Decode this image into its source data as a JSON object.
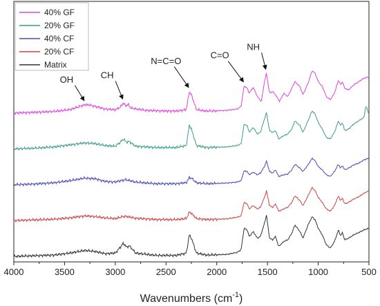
{
  "chart_data": {
    "type": "line",
    "xlabel_main": "Wavenumbers (cm",
    "xlabel_sup": "-1",
    "xlabel_close": ")",
    "xlim": [
      4000,
      500
    ],
    "xticks": [
      "4000",
      "3500",
      "3000",
      "2500",
      "2000",
      "1500",
      "1000",
      "500"
    ],
    "xtick_values": [
      4000,
      3500,
      3000,
      2500,
      2000,
      1500,
      1000,
      500
    ],
    "y_ticks_shown": false,
    "legend_placement": "top-left",
    "series": [
      {
        "name": "40% GF",
        "color": "#e040e0",
        "offset": 4,
        "points": [
          [
            4000,
            0.0
          ],
          [
            3800,
            0.02
          ],
          [
            3600,
            0.05
          ],
          [
            3450,
            0.1
          ],
          [
            3350,
            0.2
          ],
          [
            3300,
            0.25
          ],
          [
            3250,
            0.24
          ],
          [
            3100,
            0.12
          ],
          [
            3000,
            0.1
          ],
          [
            2950,
            0.18
          ],
          [
            2920,
            0.3
          ],
          [
            2900,
            0.22
          ],
          [
            2870,
            0.26
          ],
          [
            2850,
            0.15
          ],
          [
            2700,
            0.08
          ],
          [
            2500,
            0.06
          ],
          [
            2400,
            0.06
          ],
          [
            2300,
            0.1
          ],
          [
            2270,
            0.65
          ],
          [
            2250,
            0.55
          ],
          [
            2200,
            0.1
          ],
          [
            2100,
            0.06
          ],
          [
            2000,
            0.07
          ],
          [
            1900,
            0.08
          ],
          [
            1800,
            0.12
          ],
          [
            1760,
            0.2
          ],
          [
            1730,
            0.82
          ],
          [
            1700,
            0.75
          ],
          [
            1680,
            0.6
          ],
          [
            1640,
            0.78
          ],
          [
            1600,
            0.5
          ],
          [
            1560,
            0.35
          ],
          [
            1530,
            0.95
          ],
          [
            1510,
            1.2
          ],
          [
            1480,
            0.6
          ],
          [
            1450,
            0.65
          ],
          [
            1420,
            0.55
          ],
          [
            1380,
            0.35
          ],
          [
            1340,
            0.6
          ],
          [
            1300,
            0.5
          ],
          [
            1260,
            0.75
          ],
          [
            1230,
            0.95
          ],
          [
            1180,
            0.8
          ],
          [
            1150,
            0.55
          ],
          [
            1100,
            0.9
          ],
          [
            1060,
            1.28
          ],
          [
            1030,
            1.2
          ],
          [
            1000,
            0.95
          ],
          [
            960,
            0.8
          ],
          [
            920,
            0.5
          ],
          [
            880,
            0.4
          ],
          [
            840,
            0.6
          ],
          [
            800,
            1.0
          ],
          [
            780,
            0.85
          ],
          [
            760,
            0.95
          ],
          [
            740,
            0.75
          ],
          [
            700,
            0.7
          ],
          [
            650,
            0.85
          ],
          [
            600,
            0.95
          ],
          [
            550,
            1.05
          ],
          [
            500,
            1.1
          ]
        ]
      },
      {
        "name": "20% GF",
        "color": "#3a9a8a",
        "offset": 3,
        "points": [
          [
            4000,
            0.0
          ],
          [
            3800,
            0.02
          ],
          [
            3600,
            0.06
          ],
          [
            3450,
            0.12
          ],
          [
            3300,
            0.18
          ],
          [
            3200,
            0.16
          ],
          [
            3100,
            0.1
          ],
          [
            3000,
            0.08
          ],
          [
            2950,
            0.2
          ],
          [
            2920,
            0.3
          ],
          [
            2890,
            0.2
          ],
          [
            2860,
            0.22
          ],
          [
            2800,
            0.08
          ],
          [
            2600,
            0.04
          ],
          [
            2400,
            0.04
          ],
          [
            2300,
            0.1
          ],
          [
            2270,
            0.72
          ],
          [
            2250,
            0.6
          ],
          [
            2200,
            0.1
          ],
          [
            2100,
            0.04
          ],
          [
            2000,
            0.05
          ],
          [
            1900,
            0.06
          ],
          [
            1800,
            0.1
          ],
          [
            1760,
            0.15
          ],
          [
            1730,
            0.75
          ],
          [
            1700,
            0.7
          ],
          [
            1680,
            0.5
          ],
          [
            1640,
            0.65
          ],
          [
            1600,
            0.45
          ],
          [
            1570,
            0.5
          ],
          [
            1530,
            0.9
          ],
          [
            1510,
            1.1
          ],
          [
            1480,
            0.55
          ],
          [
            1450,
            0.5
          ],
          [
            1420,
            0.55
          ],
          [
            1390,
            0.3
          ],
          [
            1340,
            0.4
          ],
          [
            1300,
            0.45
          ],
          [
            1260,
            0.6
          ],
          [
            1230,
            0.85
          ],
          [
            1180,
            0.7
          ],
          [
            1150,
            0.5
          ],
          [
            1100,
            0.85
          ],
          [
            1060,
            1.15
          ],
          [
            1030,
            1.05
          ],
          [
            1000,
            0.8
          ],
          [
            960,
            0.6
          ],
          [
            920,
            0.35
          ],
          [
            880,
            0.3
          ],
          [
            840,
            0.5
          ],
          [
            800,
            0.85
          ],
          [
            780,
            0.7
          ],
          [
            760,
            0.8
          ],
          [
            740,
            0.55
          ],
          [
            700,
            0.6
          ],
          [
            650,
            0.75
          ],
          [
            600,
            0.85
          ],
          [
            550,
            0.95
          ],
          [
            530,
            1.3
          ],
          [
            500,
            1.05
          ]
        ]
      },
      {
        "name": "40% CF",
        "color": "#4848b8",
        "offset": 2,
        "points": [
          [
            4000,
            0.0
          ],
          [
            3800,
            0.02
          ],
          [
            3600,
            0.06
          ],
          [
            3450,
            0.12
          ],
          [
            3300,
            0.2
          ],
          [
            3200,
            0.18
          ],
          [
            3100,
            0.1
          ],
          [
            3000,
            0.08
          ],
          [
            2950,
            0.12
          ],
          [
            2900,
            0.15
          ],
          [
            2850,
            0.12
          ],
          [
            2800,
            0.08
          ],
          [
            2600,
            0.03
          ],
          [
            2400,
            0.03
          ],
          [
            2300,
            0.06
          ],
          [
            2270,
            0.22
          ],
          [
            2250,
            0.2
          ],
          [
            2200,
            0.06
          ],
          [
            2100,
            0.03
          ],
          [
            2000,
            0.04
          ],
          [
            1900,
            0.05
          ],
          [
            1800,
            0.08
          ],
          [
            1760,
            0.12
          ],
          [
            1730,
            0.42
          ],
          [
            1700,
            0.4
          ],
          [
            1680,
            0.3
          ],
          [
            1640,
            0.38
          ],
          [
            1600,
            0.3
          ],
          [
            1570,
            0.35
          ],
          [
            1530,
            0.55
          ],
          [
            1510,
            0.72
          ],
          [
            1480,
            0.4
          ],
          [
            1450,
            0.35
          ],
          [
            1420,
            0.45
          ],
          [
            1390,
            0.25
          ],
          [
            1340,
            0.3
          ],
          [
            1300,
            0.32
          ],
          [
            1260,
            0.45
          ],
          [
            1230,
            0.62
          ],
          [
            1180,
            0.5
          ],
          [
            1150,
            0.4
          ],
          [
            1100,
            0.6
          ],
          [
            1060,
            0.8
          ],
          [
            1030,
            0.72
          ],
          [
            1000,
            0.55
          ],
          [
            960,
            0.45
          ],
          [
            920,
            0.3
          ],
          [
            880,
            0.25
          ],
          [
            840,
            0.4
          ],
          [
            800,
            0.62
          ],
          [
            780,
            0.5
          ],
          [
            760,
            0.58
          ],
          [
            740,
            0.45
          ],
          [
            700,
            0.5
          ],
          [
            650,
            0.6
          ],
          [
            600,
            0.65
          ],
          [
            550,
            0.75
          ],
          [
            500,
            0.8
          ]
        ]
      },
      {
        "name": "20% CF",
        "color": "#d04040",
        "offset": 1,
        "points": [
          [
            4000,
            0.0
          ],
          [
            3800,
            0.02
          ],
          [
            3600,
            0.04
          ],
          [
            3450,
            0.08
          ],
          [
            3300,
            0.14
          ],
          [
            3200,
            0.12
          ],
          [
            3100,
            0.08
          ],
          [
            3000,
            0.06
          ],
          [
            2950,
            0.1
          ],
          [
            2900,
            0.13
          ],
          [
            2850,
            0.1
          ],
          [
            2800,
            0.07
          ],
          [
            2600,
            0.03
          ],
          [
            2400,
            0.03
          ],
          [
            2300,
            0.06
          ],
          [
            2270,
            0.26
          ],
          [
            2250,
            0.22
          ],
          [
            2200,
            0.06
          ],
          [
            2100,
            0.03
          ],
          [
            2000,
            0.04
          ],
          [
            1900,
            0.05
          ],
          [
            1800,
            0.1
          ],
          [
            1760,
            0.14
          ],
          [
            1730,
            0.55
          ],
          [
            1700,
            0.5
          ],
          [
            1680,
            0.35
          ],
          [
            1640,
            0.45
          ],
          [
            1600,
            0.35
          ],
          [
            1570,
            0.4
          ],
          [
            1530,
            0.7
          ],
          [
            1510,
            0.9
          ],
          [
            1480,
            0.45
          ],
          [
            1450,
            0.4
          ],
          [
            1420,
            0.5
          ],
          [
            1390,
            0.28
          ],
          [
            1340,
            0.35
          ],
          [
            1300,
            0.4
          ],
          [
            1260,
            0.55
          ],
          [
            1230,
            0.75
          ],
          [
            1180,
            0.6
          ],
          [
            1150,
            0.45
          ],
          [
            1100,
            0.75
          ],
          [
            1060,
            1.0
          ],
          [
            1030,
            0.9
          ],
          [
            1000,
            0.7
          ],
          [
            960,
            0.55
          ],
          [
            920,
            0.35
          ],
          [
            880,
            0.28
          ],
          [
            840,
            0.45
          ],
          [
            800,
            0.75
          ],
          [
            780,
            0.6
          ],
          [
            760,
            0.68
          ],
          [
            740,
            0.5
          ],
          [
            700,
            0.55
          ],
          [
            650,
            0.65
          ],
          [
            600,
            0.72
          ],
          [
            550,
            0.82
          ],
          [
            500,
            0.9
          ]
        ]
      },
      {
        "name": "Matrix",
        "color": "#303030",
        "offset": 0,
        "points": [
          [
            4000,
            0.0
          ],
          [
            3800,
            0.02
          ],
          [
            3600,
            0.04
          ],
          [
            3450,
            0.1
          ],
          [
            3300,
            0.18
          ],
          [
            3200,
            0.15
          ],
          [
            3100,
            0.08
          ],
          [
            3000,
            0.1
          ],
          [
            2950,
            0.28
          ],
          [
            2920,
            0.4
          ],
          [
            2890,
            0.28
          ],
          [
            2860,
            0.32
          ],
          [
            2800,
            0.1
          ],
          [
            2600,
            0.03
          ],
          [
            2400,
            0.03
          ],
          [
            2300,
            0.1
          ],
          [
            2270,
            0.65
          ],
          [
            2250,
            0.55
          ],
          [
            2200,
            0.1
          ],
          [
            2100,
            0.04
          ],
          [
            2000,
            0.05
          ],
          [
            1900,
            0.06
          ],
          [
            1800,
            0.12
          ],
          [
            1760,
            0.2
          ],
          [
            1730,
            0.85
          ],
          [
            1700,
            0.8
          ],
          [
            1680,
            0.6
          ],
          [
            1640,
            0.75
          ],
          [
            1600,
            0.55
          ],
          [
            1570,
            0.6
          ],
          [
            1530,
            1.0
          ],
          [
            1510,
            1.25
          ],
          [
            1480,
            0.55
          ],
          [
            1450,
            0.5
          ],
          [
            1420,
            0.6
          ],
          [
            1390,
            0.3
          ],
          [
            1340,
            0.45
          ],
          [
            1300,
            0.5
          ],
          [
            1260,
            0.7
          ],
          [
            1230,
            0.95
          ],
          [
            1180,
            0.75
          ],
          [
            1150,
            0.55
          ],
          [
            1100,
            0.95
          ],
          [
            1060,
            1.2
          ],
          [
            1030,
            1.1
          ],
          [
            1000,
            0.85
          ],
          [
            960,
            0.65
          ],
          [
            920,
            0.35
          ],
          [
            880,
            0.25
          ],
          [
            840,
            0.45
          ],
          [
            800,
            0.8
          ],
          [
            780,
            0.62
          ],
          [
            760,
            0.72
          ],
          [
            740,
            0.5
          ],
          [
            700,
            0.55
          ],
          [
            650,
            0.65
          ],
          [
            600,
            0.72
          ],
          [
            550,
            0.8
          ],
          [
            500,
            0.85
          ]
        ]
      }
    ],
    "annotations": [
      {
        "label": "OH",
        "x": 3300,
        "series": 0,
        "tx": 3480,
        "tdy": 28
      },
      {
        "label": "CH",
        "x": 2920,
        "series": 0,
        "tx": 3080,
        "tdy": 32
      },
      {
        "label": "N=C=O",
        "x": 2270,
        "series": 0,
        "tx": 2500,
        "tdy": 36
      },
      {
        "label": "C=O",
        "x": 1730,
        "series": 0,
        "tx": 1970,
        "tdy": 36
      },
      {
        "label": "NH",
        "x": 1510,
        "series": 0,
        "tx": 1640,
        "tdy": 30
      }
    ]
  }
}
